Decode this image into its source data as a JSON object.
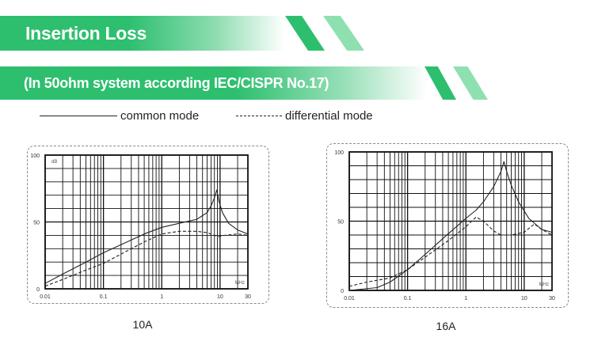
{
  "header": {
    "title": "Insertion Loss",
    "subtitle": "(In 50ohm system according IEC/CISPR No.17)",
    "accent_color": "#2dbf6e",
    "accent_light": "#8fe0b0"
  },
  "legend": {
    "common_label": "common mode",
    "differential_label": "differential mode"
  },
  "chart_data": [
    {
      "type": "line",
      "caption": "10A",
      "ylabel": "dB",
      "xlabel": "MHz",
      "xscale": "log",
      "xlim": [
        0.01,
        30
      ],
      "ylim": [
        0,
        100
      ],
      "x_ticks": [
        "0.01",
        "0.1",
        "1",
        "10",
        "30"
      ],
      "y_ticks": [
        "0",
        "50",
        "100"
      ],
      "grid": true,
      "series": [
        {
          "name": "common mode",
          "style": "solid",
          "points": [
            [
              0.01,
              4
            ],
            [
              0.02,
              11
            ],
            [
              0.05,
              20
            ],
            [
              0.1,
              27
            ],
            [
              0.2,
              33
            ],
            [
              0.5,
              41
            ],
            [
              1,
              46
            ],
            [
              2,
              49
            ],
            [
              4,
              52
            ],
            [
              6,
              57
            ],
            [
              7,
              62
            ],
            [
              8,
              68
            ],
            [
              8.8,
              74
            ],
            [
              9.5,
              66
            ],
            [
              11,
              57
            ],
            [
              14,
              49
            ],
            [
              20,
              44
            ],
            [
              30,
              41
            ]
          ]
        },
        {
          "name": "differential mode",
          "style": "dashed",
          "points": [
            [
              0.01,
              2
            ],
            [
              0.02,
              7
            ],
            [
              0.05,
              14
            ],
            [
              0.1,
              19
            ],
            [
              0.2,
              26
            ],
            [
              0.5,
              35
            ],
            [
              1,
              41
            ],
            [
              2,
              43
            ],
            [
              4,
              43
            ],
            [
              6,
              42
            ],
            [
              8,
              40
            ],
            [
              9.5,
              39
            ],
            [
              12,
              40
            ],
            [
              20,
              41
            ],
            [
              30,
              40
            ]
          ]
        }
      ]
    },
    {
      "type": "line",
      "caption": "16A",
      "ylabel": "",
      "xlabel": "MHz",
      "xscale": "log",
      "xlim": [
        0.01,
        30
      ],
      "ylim": [
        0,
        100
      ],
      "x_ticks": [
        "0.01",
        "0.1",
        "1",
        "10",
        "30"
      ],
      "y_ticks": [
        "0",
        "50",
        "100"
      ],
      "grid": true,
      "series": [
        {
          "name": "common mode",
          "style": "solid",
          "points": [
            [
              0.01,
              0
            ],
            [
              0.03,
              2
            ],
            [
              0.05,
              6
            ],
            [
              0.1,
              15
            ],
            [
              0.2,
              26
            ],
            [
              0.5,
              41
            ],
            [
              1,
              52
            ],
            [
              1.5,
              58
            ],
            [
              2,
              64
            ],
            [
              3,
              75
            ],
            [
              4,
              86
            ],
            [
              4.5,
              93
            ],
            [
              5,
              86
            ],
            [
              6,
              76
            ],
            [
              8,
              64
            ],
            [
              12,
              52
            ],
            [
              20,
              44
            ],
            [
              30,
              42
            ]
          ]
        },
        {
          "name": "differential mode",
          "style": "dashed",
          "points": [
            [
              0.01,
              3
            ],
            [
              0.02,
              6
            ],
            [
              0.05,
              9
            ],
            [
              0.1,
              15
            ],
            [
              0.2,
              24
            ],
            [
              0.5,
              36
            ],
            [
              1,
              46
            ],
            [
              1.5,
              53
            ],
            [
              2,
              50
            ],
            [
              3,
              43
            ],
            [
              4,
              40
            ],
            [
              6,
              40
            ],
            [
              10,
              42
            ],
            [
              15,
              48
            ],
            [
              20,
              44
            ],
            [
              30,
              40
            ]
          ]
        }
      ]
    }
  ]
}
